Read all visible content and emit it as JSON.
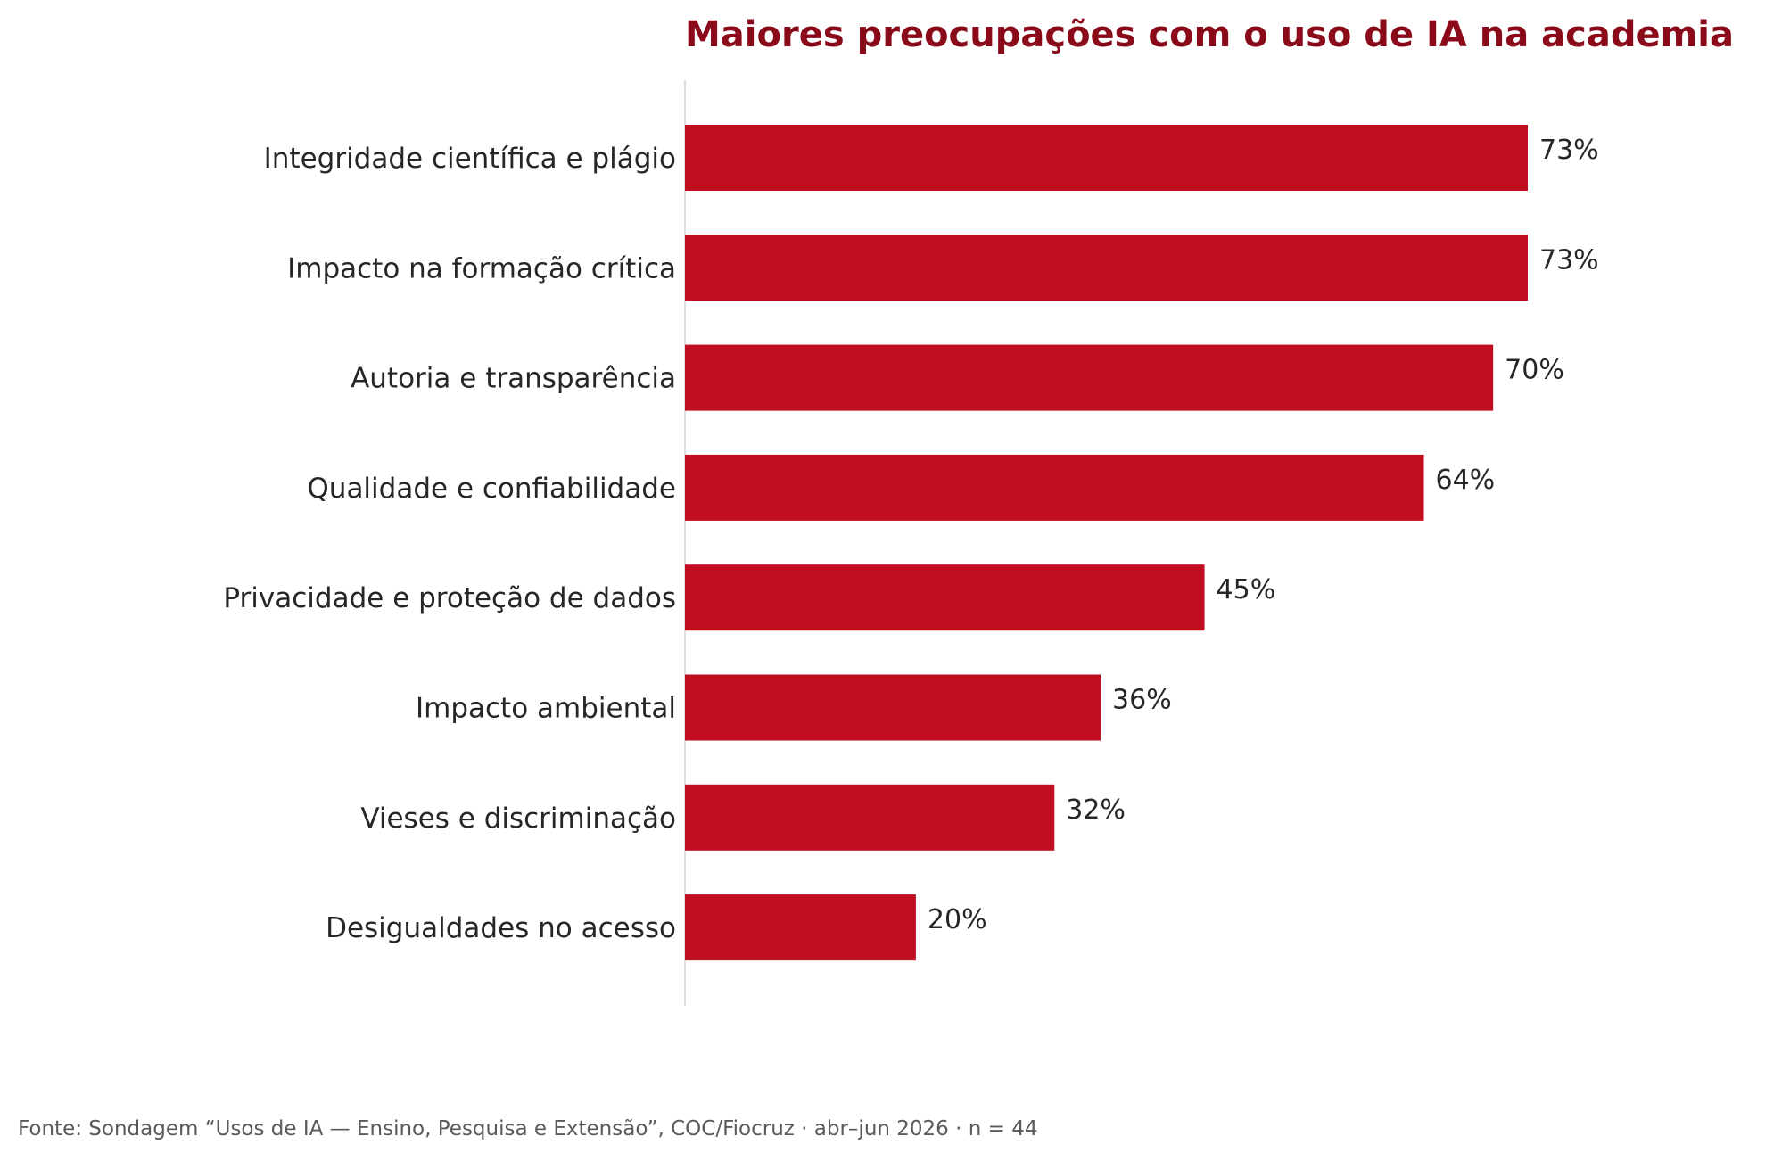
{
  "chart_data": {
    "type": "bar",
    "orientation": "horizontal",
    "title": "Maiores preocupações com o uso de IA na academia",
    "xlabel": "",
    "ylabel": "",
    "xlim": [
      0,
      100
    ],
    "grid": false,
    "legend": "none",
    "bar_color": "#c00d20",
    "title_color": "#8b0a1a",
    "categories": [
      "Integridade científica e plágio",
      "Impacto na formação crítica",
      "Autoria e transparência",
      "Qualidade e confiabilidade",
      "Privacidade e proteção de dados",
      "Impacto ambiental",
      "Vieses e discriminação",
      "Desigualdades no acesso"
    ],
    "values": [
      73,
      73,
      70,
      64,
      45,
      36,
      32,
      20
    ],
    "value_labels": [
      "73%",
      "73%",
      "70%",
      "64%",
      "45%",
      "36%",
      "32%",
      "20%"
    ]
  },
  "source_note": "Fonte: Sondagem “Usos de IA — Ensino, Pesquisa e Extensão”, COC/Fiocruz · abr–jun 2026 · n = 44"
}
